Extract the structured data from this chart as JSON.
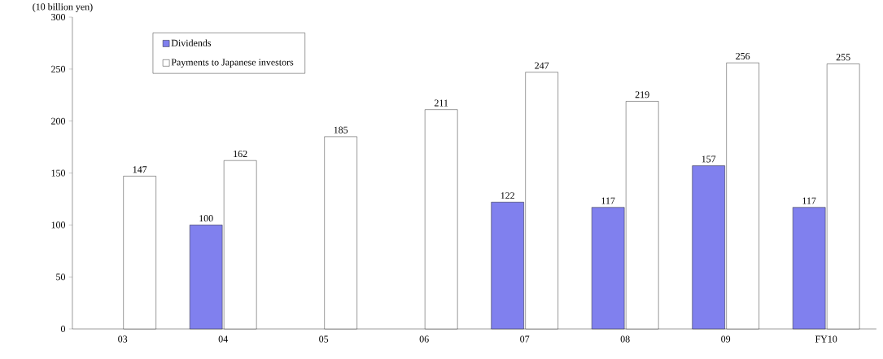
{
  "chart_data": {
    "type": "bar",
    "ylabel": "(10 billion yen)",
    "categories": [
      "03",
      "04",
      "05",
      "06",
      "07",
      "08",
      "09",
      "FY10"
    ],
    "series": [
      {
        "name": "Dividends",
        "color": "#8080ee",
        "values": [
          null,
          100,
          null,
          null,
          122,
          117,
          157,
          117
        ]
      },
      {
        "name": "Payments to Japanese investors",
        "color": "#ffffff",
        "values": [
          147,
          162,
          185,
          211,
          247,
          219,
          256,
          255
        ]
      }
    ],
    "ylim": [
      0,
      300
    ],
    "yticks": [
      0,
      50,
      100,
      150,
      200,
      250,
      300
    ],
    "data_labels": true,
    "legend": "top left",
    "grid": false
  }
}
